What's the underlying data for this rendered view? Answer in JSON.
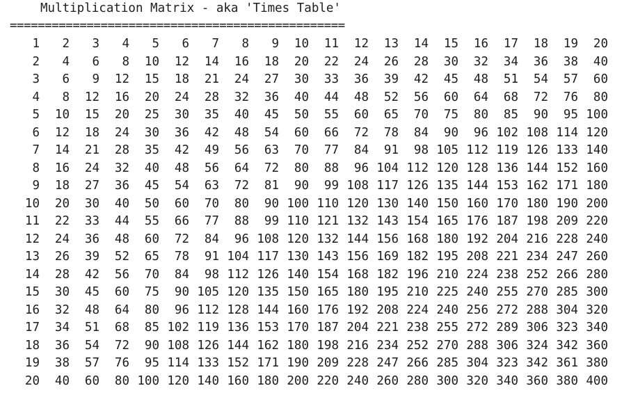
{
  "console": {
    "title": "Multiplication Matrix - aka 'Times Table'",
    "rule": "================================================"
  },
  "matrix": {
    "rows": [
      [
        "1",
        "2",
        "3",
        "4",
        "5",
        "6",
        "7",
        "8",
        "9",
        "10",
        "11",
        "12",
        "13",
        "14",
        "15",
        "16",
        "17",
        "18",
        "19",
        "20"
      ],
      [
        "2",
        "4",
        "6",
        "8",
        "10",
        "12",
        "14",
        "16",
        "18",
        "20",
        "22",
        "24",
        "26",
        "28",
        "30",
        "32",
        "34",
        "36",
        "38",
        "40"
      ],
      [
        "3",
        "6",
        "9",
        "12",
        "15",
        "18",
        "21",
        "24",
        "27",
        "30",
        "33",
        "36",
        "39",
        "42",
        "45",
        "48",
        "51",
        "54",
        "57",
        "60"
      ],
      [
        "4",
        "8",
        "12",
        "16",
        "20",
        "24",
        "28",
        "32",
        "36",
        "40",
        "44",
        "48",
        "52",
        "56",
        "60",
        "64",
        "68",
        "72",
        "76",
        "80"
      ],
      [
        "5",
        "10",
        "15",
        "20",
        "25",
        "30",
        "35",
        "40",
        "45",
        "50",
        "55",
        "60",
        "65",
        "70",
        "75",
        "80",
        "85",
        "90",
        "95",
        "100"
      ],
      [
        "6",
        "12",
        "18",
        "24",
        "30",
        "36",
        "42",
        "48",
        "54",
        "60",
        "66",
        "72",
        "78",
        "84",
        "90",
        "96",
        "102",
        "108",
        "114",
        "120"
      ],
      [
        "7",
        "14",
        "21",
        "28",
        "35",
        "42",
        "49",
        "56",
        "63",
        "70",
        "77",
        "84",
        "91",
        "98",
        "105",
        "112",
        "119",
        "126",
        "133",
        "140"
      ],
      [
        "8",
        "16",
        "24",
        "32",
        "40",
        "48",
        "56",
        "64",
        "72",
        "80",
        "88",
        "96",
        "104",
        "112",
        "120",
        "128",
        "136",
        "144",
        "152",
        "160"
      ],
      [
        "9",
        "18",
        "27",
        "36",
        "45",
        "54",
        "63",
        "72",
        "81",
        "90",
        "99",
        "108",
        "117",
        "126",
        "135",
        "144",
        "153",
        "162",
        "171",
        "180"
      ],
      [
        "10",
        "20",
        "30",
        "40",
        "50",
        "60",
        "70",
        "80",
        "90",
        "100",
        "110",
        "120",
        "130",
        "140",
        "150",
        "160",
        "170",
        "180",
        "190",
        "200"
      ],
      [
        "11",
        "22",
        "33",
        "44",
        "55",
        "66",
        "77",
        "88",
        "99",
        "110",
        "121",
        "132",
        "143",
        "154",
        "165",
        "176",
        "187",
        "198",
        "209",
        "220"
      ],
      [
        "12",
        "24",
        "36",
        "48",
        "60",
        "72",
        "84",
        "96",
        "108",
        "120",
        "132",
        "144",
        "156",
        "168",
        "180",
        "192",
        "204",
        "216",
        "228",
        "240"
      ],
      [
        "13",
        "26",
        "39",
        "52",
        "65",
        "78",
        "91",
        "104",
        "117",
        "130",
        "143",
        "156",
        "169",
        "182",
        "195",
        "208",
        "221",
        "234",
        "247",
        "260"
      ],
      [
        "14",
        "28",
        "42",
        "56",
        "70",
        "84",
        "98",
        "112",
        "126",
        "140",
        "154",
        "168",
        "182",
        "196",
        "210",
        "224",
        "238",
        "252",
        "266",
        "280"
      ],
      [
        "15",
        "30",
        "45",
        "60",
        "75",
        "90",
        "105",
        "120",
        "135",
        "150",
        "165",
        "180",
        "195",
        "210",
        "225",
        "240",
        "255",
        "270",
        "285",
        "300"
      ],
      [
        "16",
        "32",
        "48",
        "64",
        "80",
        "96",
        "112",
        "128",
        "144",
        "160",
        "176",
        "192",
        "208",
        "224",
        "240",
        "256",
        "272",
        "288",
        "304",
        "320"
      ],
      [
        "17",
        "34",
        "51",
        "68",
        "85",
        "102",
        "119",
        "136",
        "153",
        "170",
        "187",
        "204",
        "221",
        "238",
        "255",
        "272",
        "289",
        "306",
        "323",
        "340"
      ],
      [
        "18",
        "36",
        "54",
        "72",
        "90",
        "108",
        "126",
        "144",
        "162",
        "180",
        "198",
        "216",
        "234",
        "252",
        "270",
        "288",
        "306",
        "324",
        "342",
        "360"
      ],
      [
        "19",
        "38",
        "57",
        "76",
        "95",
        "114",
        "133",
        "152",
        "171",
        "190",
        "209",
        "228",
        "247",
        "266",
        "285",
        "304",
        "323",
        "342",
        "361",
        "380"
      ],
      [
        "20",
        "40",
        "60",
        "80",
        "100",
        "120",
        "140",
        "160",
        "180",
        "200",
        "220",
        "240",
        "260",
        "280",
        "300",
        "320",
        "340",
        "360",
        "380",
        "400"
      ]
    ]
  },
  "colors": {
    "background": "#ffffff",
    "text": "#1e1e1e"
  }
}
